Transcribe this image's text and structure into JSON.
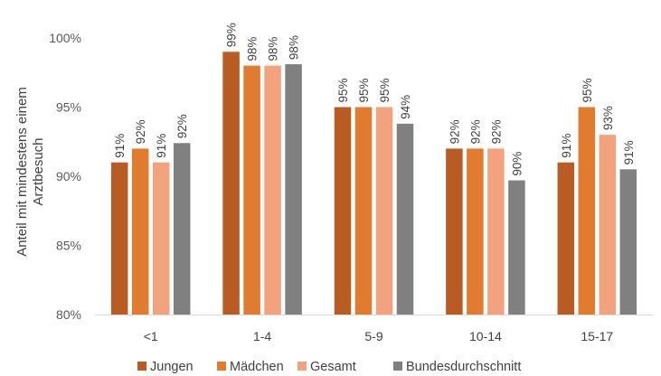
{
  "chart_data": {
    "type": "bar",
    "title": "",
    "xlabel": "",
    "ylabel": [
      "Anteil mit mindestens einem",
      "Arztbesuch"
    ],
    "ylim": [
      80,
      100
    ],
    "yticks": [
      "80%",
      "85%",
      "90%",
      "95%",
      "100%"
    ],
    "yticks_values": [
      80,
      85,
      90,
      95,
      100
    ],
    "categories": [
      "<1",
      "1-4",
      "5-9",
      "10-14",
      "15-17"
    ],
    "grid": false,
    "legend_position": "bottom",
    "series": [
      {
        "name": "Jungen",
        "color": "#b85c24",
        "values": [
          91,
          99,
          95,
          92,
          91
        ],
        "labels": [
          "91%",
          "99%",
          "95%",
          "92%",
          "91%"
        ]
      },
      {
        "name": "Mädchen",
        "color": "#e07b30",
        "values": [
          92,
          98,
          95,
          92,
          95
        ],
        "labels": [
          "92%",
          "98%",
          "95%",
          "92%",
          "95%"
        ]
      },
      {
        "name": "Gesamt",
        "color": "#f2a27c",
        "values": [
          91,
          98,
          95,
          92,
          93
        ],
        "labels": [
          "91%",
          "98%",
          "95%",
          "92%",
          "93%"
        ]
      },
      {
        "name": "Bundesdurchschnitt",
        "color": "#808080",
        "values": [
          92.4,
          98.1,
          93.8,
          89.7,
          90.5
        ],
        "labels": [
          "92%",
          "98%",
          "94%",
          "90%",
          "91%"
        ]
      }
    ]
  }
}
